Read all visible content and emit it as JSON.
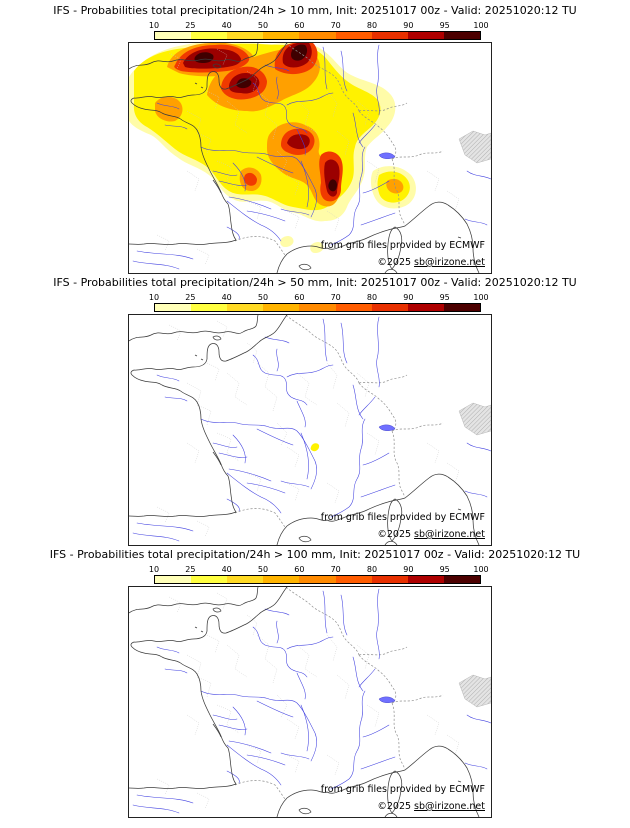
{
  "model": "IFS",
  "init": "20251017 00z",
  "valid": "20251020:12 TU",
  "panels": [
    {
      "threshold": "> 10 mm",
      "title": "IFS - Probabilities total precipitation/24h > 10 mm, Init: 20251017 00z - Valid: 20251020:12 TU"
    },
    {
      "threshold": "> 50 mm",
      "title": "IFS - Probabilities total precipitation/24h > 50 mm, Init: 20251017 00z - Valid: 20251020:12 TU"
    },
    {
      "threshold": "> 100 mm",
      "title": "IFS - Probabilities total precipitation/24h > 100 mm, Init: 20251017 00z - Valid: 20251020:12 TU"
    }
  ],
  "colorbar": {
    "tick_labels": [
      "10",
      "25",
      "40",
      "50",
      "60",
      "70",
      "80",
      "90",
      "95",
      "100"
    ],
    "segment_colors": [
      "#FFFFB8",
      "#FFFF40",
      "#FFDA24",
      "#FFB400",
      "#FF8A00",
      "#FF5C00",
      "#E83000",
      "#AE0000",
      "#4C0000"
    ]
  },
  "attribution": {
    "line1": "from grib files provided by ECMWF",
    "line2_prefix": "©2025",
    "line2_link": "sb@irizone.net"
  },
  "map_colors": {
    "river": "#4040e0",
    "coast": "#3c3c3c",
    "border": "#8f8f8f",
    "dept_border": "#c9c9c9"
  }
}
